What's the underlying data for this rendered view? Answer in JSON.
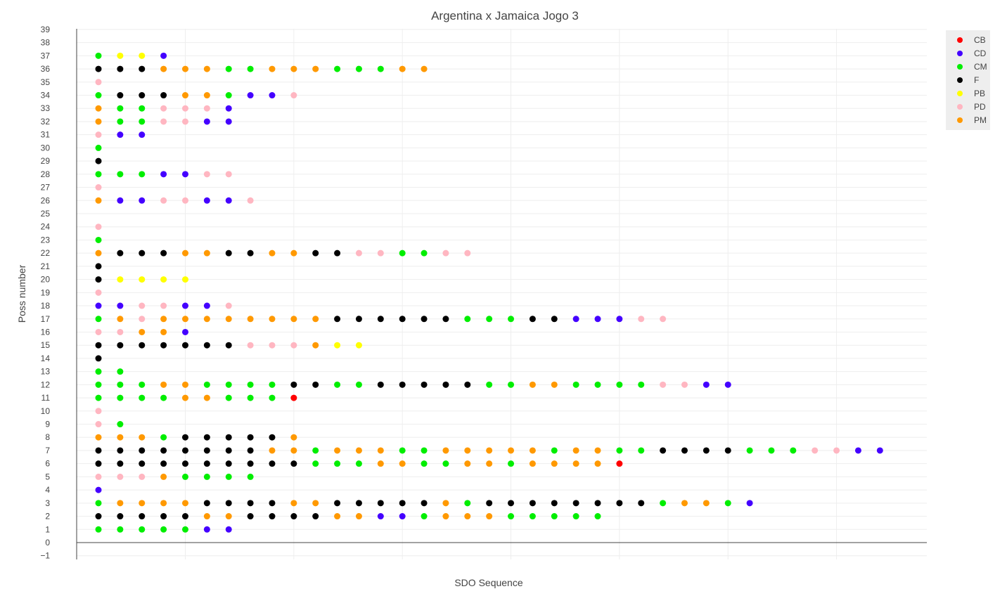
{
  "chart_data": {
    "type": "scatter",
    "title": "Argentina x Jamaica Jogo 3",
    "xlabel": "SDO Sequence",
    "ylabel": "Poss number",
    "xlim": [
      -1,
      38.5
    ],
    "ylim": [
      -1.5,
      39.5
    ],
    "y_ticks": [
      -1,
      0,
      1,
      2,
      3,
      4,
      5,
      6,
      7,
      8,
      9,
      10,
      11,
      12,
      13,
      14,
      15,
      16,
      17,
      18,
      19,
      20,
      21,
      22,
      23,
      24,
      25,
      26,
      27,
      28,
      29,
      30,
      31,
      32,
      33,
      34,
      35,
      36,
      37,
      38,
      39
    ],
    "x_tick_labels_visible": false,
    "grid": true,
    "legend_position": "top-right",
    "colors": {
      "CB": "#ff0000",
      "CD": "#4400ff",
      "CM": "#00ee00",
      "F": "#000000",
      "PB": "#ffff00",
      "PD": "#ffb6c1",
      "PM": "#ff9900"
    },
    "legend": [
      "CB",
      "CD",
      "CM",
      "F",
      "PB",
      "PD",
      "PM"
    ],
    "possessions": [
      {
        "poss": 1,
        "seq": [
          "CM",
          "CM",
          "CM",
          "CM",
          "CM",
          "CD",
          "CD"
        ]
      },
      {
        "poss": 2,
        "seq": [
          "F",
          "F",
          "F",
          "F",
          "F",
          "PM",
          "PM",
          "F",
          "F",
          "F",
          "F",
          "PM",
          "PM",
          "CD",
          "CD",
          "CM",
          "PM",
          "PM",
          "PM",
          "CM",
          "CM",
          "CM",
          "CM",
          "CM"
        ]
      },
      {
        "poss": 3,
        "seq": [
          "CM",
          "PM",
          "PM",
          "PM",
          "PM",
          "F",
          "F",
          "F",
          "F",
          "PM",
          "PM",
          "F",
          "F",
          "F",
          "F",
          "F",
          "PM",
          "CM",
          "F",
          "F",
          "F",
          "F",
          "F",
          "F",
          "F",
          "F",
          "CM",
          "PM",
          "PM",
          "CM",
          "CD"
        ]
      },
      {
        "poss": 4,
        "seq": [
          "CD"
        ]
      },
      {
        "poss": 5,
        "seq": [
          "PD",
          "PD",
          "PD",
          "PM",
          "CM",
          "CM",
          "CM",
          "CM"
        ]
      },
      {
        "poss": 6,
        "seq": [
          "F",
          "F",
          "F",
          "F",
          "F",
          "F",
          "F",
          "F",
          "F",
          "F",
          "CM",
          "CM",
          "CM",
          "PM",
          "PM",
          "CM",
          "CM",
          "PM",
          "PM",
          "CM",
          "PM",
          "PM",
          "PM",
          "PM",
          "CB"
        ]
      },
      {
        "poss": 7,
        "seq": [
          "F",
          "F",
          "F",
          "F",
          "F",
          "F",
          "F",
          "F",
          "PM",
          "PM",
          "CM",
          "PM",
          "PM",
          "PM",
          "CM",
          "CM",
          "PM",
          "PM",
          "PM",
          "PM",
          "PM",
          "CM",
          "PM",
          "PM",
          "CM",
          "CM",
          "F",
          "F",
          "F",
          "F",
          "CM",
          "CM",
          "CM",
          "PD",
          "PD",
          "CD",
          "CD"
        ]
      },
      {
        "poss": 8,
        "seq": [
          "PM",
          "PM",
          "PM",
          "CM",
          "F",
          "F",
          "F",
          "F",
          "F",
          "PM"
        ]
      },
      {
        "poss": 9,
        "seq": [
          "PD",
          "CM"
        ]
      },
      {
        "poss": 10,
        "seq": [
          "PD"
        ]
      },
      {
        "poss": 11,
        "seq": [
          "CM",
          "CM",
          "CM",
          "CM",
          "PM",
          "PM",
          "CM",
          "CM",
          "CM",
          "CB"
        ]
      },
      {
        "poss": 12,
        "seq": [
          "CM",
          "CM",
          "CM",
          "PM",
          "PM",
          "CM",
          "CM",
          "CM",
          "CM",
          "F",
          "F",
          "CM",
          "CM",
          "F",
          "F",
          "F",
          "F",
          "F",
          "CM",
          "CM",
          "PM",
          "PM",
          "CM",
          "CM",
          "CM",
          "CM",
          "PD",
          "PD",
          "CD",
          "CD"
        ]
      },
      {
        "poss": 13,
        "seq": [
          "CM",
          "CM"
        ]
      },
      {
        "poss": 14,
        "seq": [
          "F"
        ]
      },
      {
        "poss": 15,
        "seq": [
          "F",
          "F",
          "F",
          "F",
          "F",
          "F",
          "F",
          "PD",
          "PD",
          "PD",
          "PM",
          "PB",
          "PB"
        ]
      },
      {
        "poss": 16,
        "seq": [
          "PD",
          "PD",
          "PM",
          "PM",
          "CD"
        ]
      },
      {
        "poss": 17,
        "seq": [
          "CM",
          "PM",
          "PD",
          "PM",
          "PM",
          "PM",
          "PM",
          "PM",
          "PM",
          "PM",
          "PM",
          "F",
          "F",
          "F",
          "F",
          "F",
          "F",
          "CM",
          "CM",
          "CM",
          "F",
          "F",
          "CD",
          "CD",
          "CD",
          "PD",
          "PD"
        ]
      },
      {
        "poss": 18,
        "seq": [
          "CD",
          "CD",
          "PD",
          "PD",
          "CD",
          "CD",
          "PD"
        ]
      },
      {
        "poss": 19,
        "seq": [
          "PD"
        ]
      },
      {
        "poss": 20,
        "seq": [
          "F",
          "PB",
          "PB",
          "PB",
          "PB"
        ]
      },
      {
        "poss": 21,
        "seq": [
          "F"
        ]
      },
      {
        "poss": 22,
        "seq": [
          "PM",
          "F",
          "F",
          "F",
          "PM",
          "PM",
          "F",
          "F",
          "PM",
          "PM",
          "F",
          "F",
          "PD",
          "PD",
          "CM",
          "CM",
          "PD",
          "PD"
        ]
      },
      {
        "poss": 23,
        "seq": [
          "CM"
        ]
      },
      {
        "poss": 24,
        "seq": [
          "PD"
        ]
      },
      {
        "poss": 26,
        "seq": [
          "PM",
          "CD",
          "CD",
          "PD",
          "PD",
          "CD",
          "CD",
          "PD"
        ]
      },
      {
        "poss": 27,
        "seq": [
          "PD"
        ]
      },
      {
        "poss": 28,
        "seq": [
          "CM",
          "CM",
          "CM",
          "CD",
          "CD",
          "PD",
          "PD"
        ]
      },
      {
        "poss": 29,
        "seq": [
          "F"
        ]
      },
      {
        "poss": 30,
        "seq": [
          "CM"
        ]
      },
      {
        "poss": 31,
        "seq": [
          "PD",
          "CD",
          "CD"
        ]
      },
      {
        "poss": 32,
        "seq": [
          "PM",
          "CM",
          "CM",
          "PD",
          "PD",
          "CD",
          "CD"
        ]
      },
      {
        "poss": 33,
        "seq": [
          "PM",
          "CM",
          "CM",
          "PD",
          "PD",
          "PD",
          "CD"
        ]
      },
      {
        "poss": 34,
        "seq": [
          "CM",
          "F",
          "F",
          "F",
          "PM",
          "PM",
          "CM",
          "CD",
          "CD",
          "PD"
        ]
      },
      {
        "poss": 35,
        "seq": [
          "PD"
        ]
      },
      {
        "poss": 36,
        "seq": [
          "F",
          "F",
          "F",
          "PM",
          "PM",
          "PM",
          "CM",
          "CM",
          "PM",
          "PM",
          "PM",
          "CM",
          "CM",
          "CM",
          "PM",
          "PM"
        ]
      },
      {
        "poss": 37,
        "seq": [
          "CM",
          "PB",
          "PB",
          "CD"
        ]
      }
    ]
  }
}
